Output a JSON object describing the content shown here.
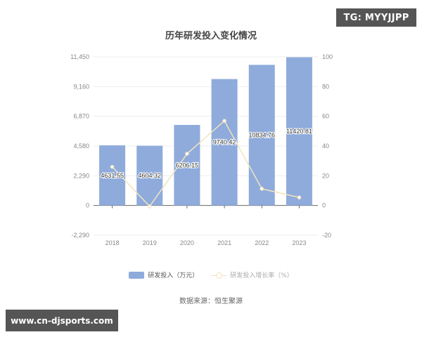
{
  "title": "历年研发投入变化情况",
  "legend": {
    "bar_label": "研发投入（万元）",
    "line_label": "研发投入增长率（%）"
  },
  "source": "数据来源：恒生聚源",
  "watermarks": {
    "top_right": "TG: MYYJJPP",
    "bottom_left": "www.cn-djsports.com"
  },
  "colors": {
    "bar": "#8eabdc",
    "line": "#f3e3bd",
    "grid": "#eeeeee",
    "axis_text": "#888888"
  },
  "chart_data": {
    "type": "bar+line",
    "title": "历年研发投入变化情况",
    "categories": [
      "2018",
      "2019",
      "2020",
      "2021",
      "2022",
      "2023"
    ],
    "series": [
      {
        "name": "研发投入（万元）",
        "type": "bar",
        "axis": "left",
        "values": [
          4631.55,
          4604.32,
          6206.15,
          9740.42,
          10834.76,
          11420.81
        ],
        "labels": [
          "4631.55",
          "4604.32",
          "6206.15",
          "9740.42",
          "10834.76",
          "11420.81"
        ]
      },
      {
        "name": "研发投入增长率（%）",
        "type": "line",
        "axis": "right",
        "values": [
          26,
          -0.59,
          34.79,
          56.95,
          11.23,
          5.41
        ]
      }
    ],
    "y_left": {
      "ticks": [
        "11,450",
        "9,160",
        "6,870",
        "4,580",
        "2,290",
        "0",
        "-2,290"
      ],
      "values": [
        11450,
        9160,
        6870,
        4580,
        2290,
        0,
        -2290
      ],
      "range": [
        -2290,
        11450
      ]
    },
    "y_right": {
      "ticks": [
        "100",
        "80",
        "60",
        "40",
        "20",
        "0",
        "-20"
      ],
      "values": [
        100,
        80,
        60,
        40,
        20,
        0,
        -20
      ],
      "range": [
        -20,
        100
      ]
    },
    "grid": true,
    "legend_position": "bottom",
    "xlabel": "",
    "ylabel": ""
  }
}
